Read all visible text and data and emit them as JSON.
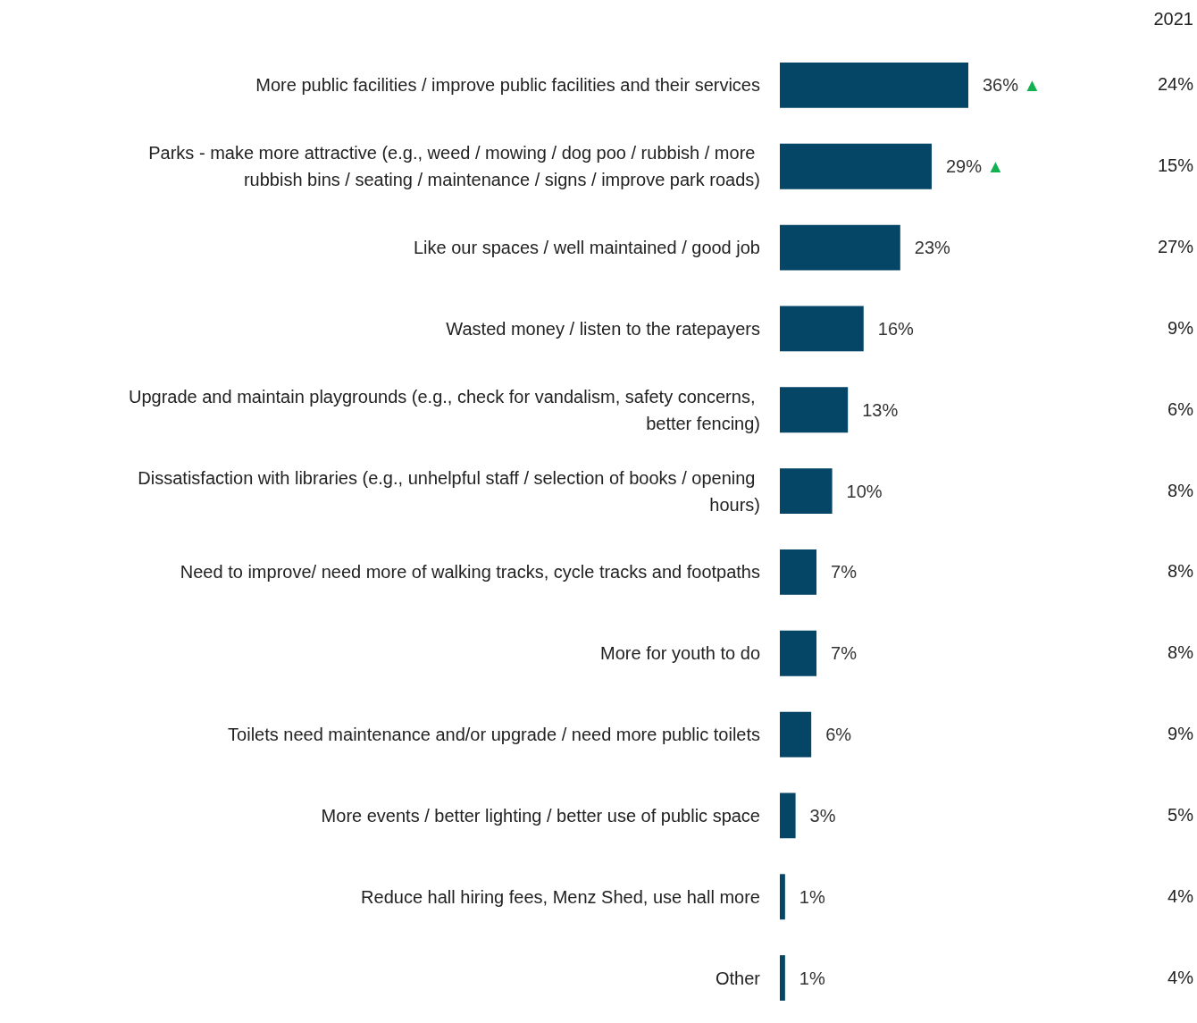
{
  "chart_data": {
    "type": "bar",
    "orientation": "horizontal",
    "color": "#054566",
    "value_labels": [
      "36% ▲",
      "29% ▲",
      "23%",
      "16%",
      "13%",
      "10%",
      "7%",
      "7%",
      "6%",
      "3%",
      "1%",
      "1%"
    ],
    "categories": [
      "More public facilities / improve public facilities and their services",
      "Parks - make more attractive (e.g., weed / mowing / dog poo / rubbish / more rubbish bins / seating / maintenance / signs / improve park roads)",
      "Like our spaces / well maintained / good job",
      "Wasted money / listen to the ratepayers",
      "Upgrade and maintain playgrounds (e.g., check for vandalism, safety concerns, better fencing)",
      "Dissatisfaction with libraries (e.g., unhelpful staff / selection of books / opening hours)",
      "Need to improve/ need more of walking tracks, cycle tracks and footpaths",
      "More for youth to do",
      "Toilets need maintenance and/or upgrade / need more public toilets",
      "More events / better lighting / better use of public space",
      "Reduce hall hiring fees, Menz Shed, use hall more",
      "Other"
    ],
    "values": [
      36,
      29,
      23,
      16,
      13,
      10,
      7,
      7,
      6,
      3,
      1,
      1
    ],
    "annotations": [
      "2021",
      "24%",
      "15%",
      "27%",
      "9%",
      "6%",
      "8%",
      "8%",
      "8%",
      "9%",
      "5%",
      "4%",
      "4%"
    ]
  }
}
